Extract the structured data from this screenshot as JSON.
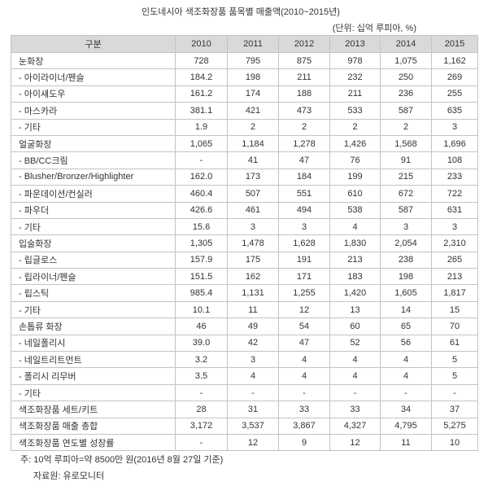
{
  "title": "인도네시아 색조화장품 품목별 매출액(2010~2015년)",
  "unit": "(단위: 십억 루피아, %)",
  "table": {
    "headers": [
      "구분",
      "2010",
      "2011",
      "2012",
      "2013",
      "2014",
      "2015"
    ],
    "rows": [
      {
        "label": "눈화장",
        "values": [
          "728",
          "795",
          "875",
          "978",
          "1,075",
          "1,162"
        ]
      },
      {
        "label": "- 아이라이너/펜슬",
        "values": [
          "184.2",
          "198",
          "211",
          "232",
          "250",
          "269"
        ]
      },
      {
        "label": "- 아이섀도우",
        "values": [
          "161.2",
          "174",
          "188",
          "211",
          "236",
          "255"
        ]
      },
      {
        "label": "- 마스카라",
        "values": [
          "381.1",
          "421",
          "473",
          "533",
          "587",
          "635"
        ]
      },
      {
        "label": "- 기타",
        "values": [
          "1.9",
          "2",
          "2",
          "2",
          "2",
          "3"
        ]
      },
      {
        "label": "얼굴화장",
        "values": [
          "1,065",
          "1,184",
          "1,278",
          "1,426",
          "1,568",
          "1,696"
        ]
      },
      {
        "label": "- BB/CC크림",
        "values": [
          "-",
          "41",
          "47",
          "76",
          "91",
          "108"
        ]
      },
      {
        "label": "- Blusher/Bronzer/Highlighter",
        "values": [
          "162.0",
          "173",
          "184",
          "199",
          "215",
          "233"
        ]
      },
      {
        "label": "- 파운데이션/컨실러",
        "values": [
          "460.4",
          "507",
          "551",
          "610",
          "672",
          "722"
        ]
      },
      {
        "label": "- 파우더",
        "values": [
          "426.6",
          "461",
          "494",
          "538",
          "587",
          "631"
        ]
      },
      {
        "label": "- 기타",
        "values": [
          "15.6",
          "3",
          "3",
          "4",
          "3",
          "3"
        ]
      },
      {
        "label": "입술화장",
        "values": [
          "1,305",
          "1,478",
          "1,628",
          "1,830",
          "2,054",
          "2,310"
        ]
      },
      {
        "label": "- 립글로스",
        "values": [
          "157.9",
          "175",
          "191",
          "213",
          "238",
          "265"
        ]
      },
      {
        "label": "- 립라이너/펜슬",
        "values": [
          "151.5",
          "162",
          "171",
          "183",
          "198",
          "213"
        ]
      },
      {
        "label": "- 립스틱",
        "values": [
          "985.4",
          "1,131",
          "1,255",
          "1,420",
          "1,605",
          "1,817"
        ]
      },
      {
        "label": "- 기타",
        "values": [
          "10.1",
          "11",
          "12",
          "13",
          "14",
          "15"
        ]
      },
      {
        "label": "손톱류 화장",
        "values": [
          "46",
          "49",
          "54",
          "60",
          "65",
          "70"
        ]
      },
      {
        "label": "- 네일폴리시",
        "values": [
          "39.0",
          "42",
          "47",
          "52",
          "56",
          "61"
        ]
      },
      {
        "label": "- 네일트리트먼트",
        "values": [
          "3.2",
          "3",
          "4",
          "4",
          "4",
          "5"
        ]
      },
      {
        "label": "- 폴리시 리무버",
        "values": [
          "3.5",
          "4",
          "4",
          "4",
          "4",
          "5"
        ]
      },
      {
        "label": "- 기타",
        "values": [
          "-",
          "-",
          "-",
          "-",
          "-",
          "-"
        ]
      },
      {
        "label": "색조화장품 세트/키트",
        "values": [
          "28",
          "31",
          "33",
          "33",
          "34",
          "37"
        ]
      },
      {
        "label": "색조화장품 매출 총합",
        "values": [
          "3,172",
          "3,537",
          "3,867",
          "4,327",
          "4,795",
          "5,275"
        ]
      },
      {
        "label": "색조화장품 연도별 성장률",
        "values": [
          "-",
          "12",
          "9",
          "12",
          "11",
          "10"
        ]
      }
    ]
  },
  "notes": {
    "note": "주: 10억 루피아=약 8500만 원(2016년 8월 27일 기준)",
    "source": "자료원: 유로모니터"
  }
}
